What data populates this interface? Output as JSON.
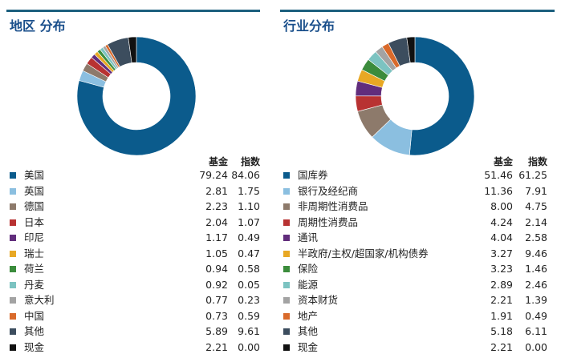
{
  "chart_data": [
    {
      "type": "pie",
      "title": "地区 分布",
      "headers": {
        "fund": "基金",
        "index": "指数"
      },
      "categories": [
        "美国",
        "英国",
        "德国",
        "日本",
        "印尼",
        "瑞士",
        "荷兰",
        "丹麦",
        "意大利",
        "中国",
        "其他",
        "现金"
      ],
      "series": [
        {
          "name": "基金",
          "values": [
            79.24,
            2.81,
            2.23,
            2.04,
            1.17,
            1.05,
            0.94,
            0.92,
            0.77,
            0.73,
            5.89,
            2.21
          ]
        },
        {
          "name": "指数",
          "values": [
            84.06,
            1.75,
            1.1,
            1.07,
            0.49,
            0.47,
            0.58,
            0.05,
            0.23,
            0.59,
            9.61,
            0.0
          ]
        }
      ],
      "colors": [
        "#0b5b8c",
        "#8bbfe0",
        "#8d7a6b",
        "#b83232",
        "#612d7c",
        "#e8a824",
        "#3b8c3c",
        "#7cc3c1",
        "#a3a3a3",
        "#d96a2b",
        "#3c4d5e",
        "#111111"
      ],
      "donut_series": "基金",
      "legend": "below"
    },
    {
      "type": "pie",
      "title": "行业分布",
      "headers": {
        "fund": "基金",
        "index": "指数"
      },
      "categories": [
        "国库券",
        "银行及经纪商",
        "非周期性消费品",
        "周期性消费品",
        "通讯",
        "半政府/主权/超国家/机构债券",
        "保险",
        "能源",
        "资本财货",
        "地产",
        "其他",
        "现金"
      ],
      "series": [
        {
          "name": "基金",
          "values": [
            51.46,
            11.36,
            8.0,
            4.24,
            4.04,
            3.27,
            3.23,
            2.89,
            2.21,
            1.91,
            5.18,
            2.21
          ]
        },
        {
          "name": "指数",
          "values": [
            61.25,
            7.91,
            4.75,
            2.14,
            2.58,
            9.46,
            1.46,
            2.46,
            1.39,
            0.49,
            6.11,
            0.0
          ]
        }
      ],
      "colors": [
        "#0b5b8c",
        "#8bbfe0",
        "#8d7a6b",
        "#b83232",
        "#612d7c",
        "#e8a824",
        "#3b8c3c",
        "#7cc3c1",
        "#a3a3a3",
        "#d96a2b",
        "#3c4d5e",
        "#111111"
      ],
      "donut_series": "基金",
      "legend": "below"
    }
  ]
}
